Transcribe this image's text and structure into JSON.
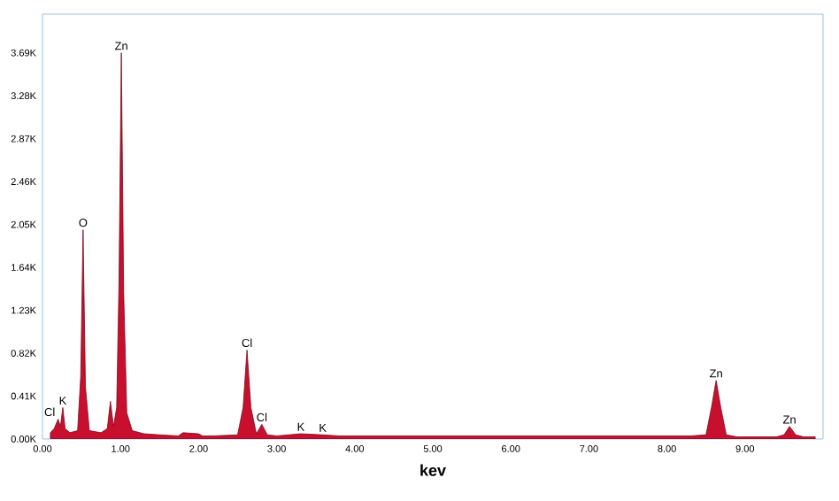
{
  "chart_data": {
    "type": "area",
    "xlabel": "kev",
    "x": [
      0.1,
      0.15,
      0.2,
      0.23,
      0.26,
      0.29,
      0.35,
      0.45,
      0.49,
      0.52,
      0.55,
      0.6,
      0.75,
      0.83,
      0.87,
      0.91,
      0.95,
      0.98,
      1.01,
      1.04,
      1.08,
      1.15,
      1.3,
      1.5,
      1.74,
      1.8,
      2.0,
      2.05,
      2.2,
      2.5,
      2.57,
      2.62,
      2.67,
      2.74,
      2.81,
      2.88,
      3.0,
      3.31,
      3.59,
      3.8,
      4.5,
      5.5,
      6.5,
      7.5,
      8.3,
      8.5,
      8.57,
      8.63,
      8.69,
      8.76,
      8.9,
      9.4,
      9.5,
      9.57,
      9.65,
      9.75,
      9.9
    ],
    "series": [
      {
        "color": "#c8102e",
        "values": [
          0.06,
          0.1,
          0.19,
          0.12,
          0.3,
          0.1,
          0.06,
          0.08,
          0.6,
          2.0,
          0.5,
          0.08,
          0.06,
          0.1,
          0.36,
          0.12,
          0.3,
          1.5,
          3.69,
          1.4,
          0.25,
          0.08,
          0.05,
          0.04,
          0.03,
          0.06,
          0.05,
          0.03,
          0.03,
          0.04,
          0.3,
          0.85,
          0.3,
          0.05,
          0.14,
          0.04,
          0.03,
          0.05,
          0.04,
          0.03,
          0.03,
          0.03,
          0.03,
          0.03,
          0.03,
          0.04,
          0.3,
          0.56,
          0.3,
          0.04,
          0.02,
          0.02,
          0.04,
          0.12,
          0.04,
          0.02,
          0.02
        ]
      }
    ],
    "xlim": [
      0,
      10
    ],
    "ylim": [
      0,
      4.06
    ],
    "xticks": [
      {
        "value": 0,
        "label": "0.00"
      },
      {
        "value": 1,
        "label": "1.00"
      },
      {
        "value": 2,
        "label": "2.00"
      },
      {
        "value": 3,
        "label": "3.00"
      },
      {
        "value": 4,
        "label": "4.00"
      },
      {
        "value": 5,
        "label": "5.00"
      },
      {
        "value": 6,
        "label": "6.00"
      },
      {
        "value": 7,
        "label": "7.00"
      },
      {
        "value": 8,
        "label": "8.00"
      },
      {
        "value": 9,
        "label": "9.00"
      }
    ],
    "yticks": [
      {
        "value": 0,
        "label": "0.00K"
      },
      {
        "value": 0.41,
        "label": "0.41K"
      },
      {
        "value": 0.82,
        "label": "0.82K"
      },
      {
        "value": 1.23,
        "label": "1.23K"
      },
      {
        "value": 1.64,
        "label": "1.64K"
      },
      {
        "value": 2.05,
        "label": "2.05K"
      },
      {
        "value": 2.46,
        "label": "2.46K"
      },
      {
        "value": 2.87,
        "label": "2.87K"
      },
      {
        "value": 3.28,
        "label": "3.28K"
      },
      {
        "value": 3.69,
        "label": "3.69K"
      }
    ],
    "grid": false,
    "annotations": [
      {
        "text": "Cl",
        "x": 0.2,
        "y": 0.19
      },
      {
        "text": "K",
        "x": 0.26,
        "y": 0.3
      },
      {
        "text": "O",
        "x": 0.52,
        "y": 2.0
      },
      {
        "text": "Zn",
        "x": 1.01,
        "y": 3.69
      },
      {
        "text": "Cl",
        "x": 2.62,
        "y": 0.85
      },
      {
        "text": "Cl",
        "x": 2.81,
        "y": 0.14
      },
      {
        "text": "K",
        "x": 3.31,
        "y": 0.05
      },
      {
        "text": "K",
        "x": 3.59,
        "y": 0.04
      },
      {
        "text": "Zn",
        "x": 8.63,
        "y": 0.56
      },
      {
        "text": "Zn",
        "x": 9.57,
        "y": 0.12
      }
    ]
  }
}
